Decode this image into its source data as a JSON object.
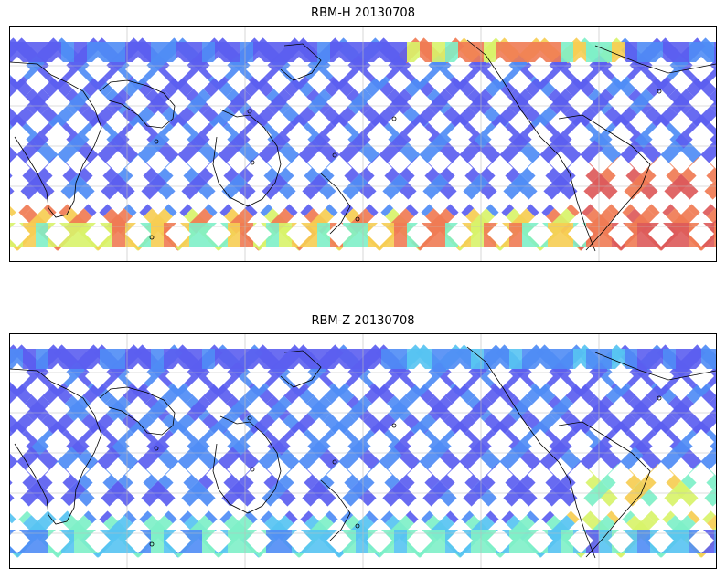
{
  "panels": [
    {
      "title": "RBM-H 20130708",
      "palette": [
        "#5b5ef0",
        "#4f8cf5",
        "#57c3f2",
        "#7ef0c8",
        "#d8f36a",
        "#f6cd53",
        "#f07b54",
        "#dd5a5a"
      ],
      "description_levels": {
        "southern_band": "high",
        "north_east_band": "high",
        "south_east_region": "very-high"
      }
    },
    {
      "title": "RBM-Z 20130708",
      "palette": [
        "#5b5ef0",
        "#4f8cf5",
        "#57c3f2",
        "#7ef0c8",
        "#d8f36a",
        "#f6cd53",
        "#f07b54",
        "#dd5a5a"
      ],
      "description_levels": {
        "southern_band": "medium",
        "north_east_band": "low",
        "south_east_region": "medium-high"
      }
    }
  ]
}
